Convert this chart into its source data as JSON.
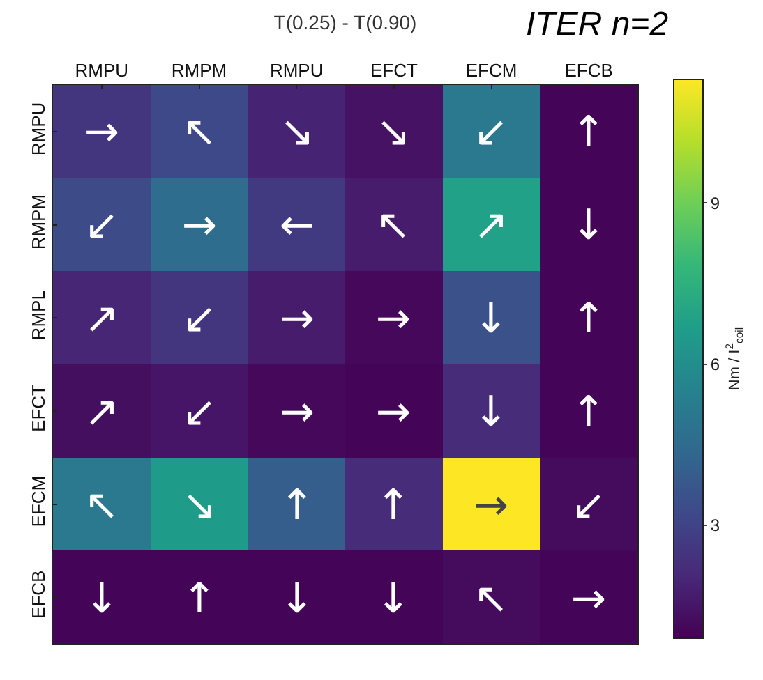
{
  "chart_data": {
    "type": "heatmap",
    "title": "T(0.25) - T(0.90)",
    "annotations": [
      "ITER n=2"
    ],
    "categories": [
      "RMPU",
      "RMPM",
      "RMPU",
      "EFCT",
      "EFCM",
      "EFCB"
    ],
    "y_categories": [
      "RMPU",
      "RMPM",
      "RMPL",
      "EFCT",
      "EFCM",
      "EFCB"
    ],
    "cells": [
      [
        2.5,
        3.2,
        1.9,
        1.4,
        5.1,
        1.0
      ],
      [
        3.3,
        4.6,
        2.7,
        1.7,
        6.8,
        1.0
      ],
      [
        2.0,
        2.5,
        1.7,
        1.1,
        3.5,
        1.0
      ],
      [
        1.3,
        1.5,
        1.1,
        1.0,
        2.2,
        1.0
      ],
      [
        5.1,
        6.6,
        4.0,
        2.2,
        11.3,
        1.2
      ],
      [
        1.0,
        1.0,
        1.0,
        1.0,
        1.2,
        1.0
      ]
    ],
    "cell_labels": [
      [
        "→",
        "↖",
        "↘",
        "↘",
        "↙",
        "↑"
      ],
      [
        "↙",
        "→",
        "←",
        "↖",
        "↗",
        "↓"
      ],
      [
        "↗",
        "↙",
        "→",
        "→",
        "↓",
        "↑"
      ],
      [
        "↗",
        "↙",
        "→",
        "→",
        "↓",
        "↑"
      ],
      [
        "↖",
        "↘",
        "↑",
        "↑",
        "→",
        "↙"
      ],
      [
        "↓",
        "↑",
        "↓",
        "↓",
        "↖",
        "→"
      ]
    ],
    "clim": [
      0.9,
      11.3
    ],
    "cticks": [
      3,
      6,
      9
    ],
    "clabel": "Nm / I$^{2}$$_{coil}$"
  }
}
